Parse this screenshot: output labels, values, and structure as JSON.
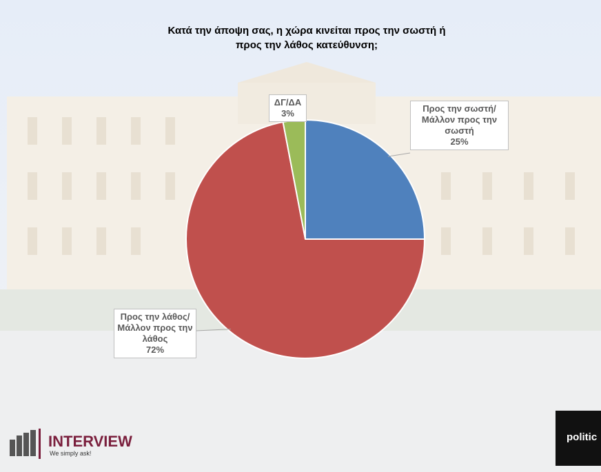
{
  "chart_data": {
    "type": "pie",
    "title": "Κατά την άποψη σας, η χώρα κινείται προς την σωστή ή προς την λάθος κατεύθυνση;",
    "categories": [
      "Προς την σωστή/Μάλλον προς την σωστή",
      "Προς την λάθος/Μάλλον προς την λάθος",
      "ΔΓ/ΔΑ"
    ],
    "values": [
      25,
      72,
      3
    ],
    "value_labels": [
      "25%",
      "72%",
      "3%"
    ],
    "colors": [
      "#4f81bd",
      "#c0504d",
      "#9bbb59"
    ]
  },
  "branding": {
    "left_logo": "INTERVIEW",
    "left_tagline": "We simply ask!",
    "right_logo": "politic"
  }
}
